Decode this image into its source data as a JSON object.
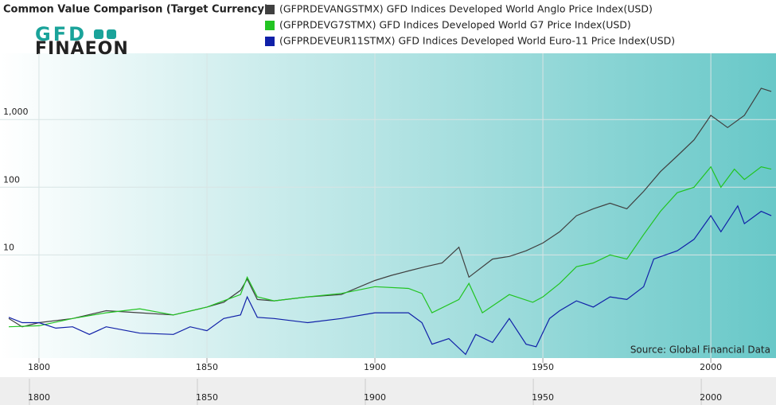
{
  "chart_data": {
    "type": "line",
    "title": "Common Value Comparison (Target Currency)",
    "logo": [
      "GFD",
      "FINAEON"
    ],
    "annotation": "Source: Global Financial Data",
    "log_scale": true,
    "grid": true,
    "xlim": [
      1788.4,
      2019.4
    ],
    "xticks": [
      1800,
      1850,
      1900,
      1950,
      2000
    ],
    "ylim": [
      0.3,
      9500
    ],
    "yticks": [
      10,
      100,
      {
        "value": 1000,
        "label": "1,000"
      }
    ],
    "series": [
      {
        "name": "(GFPRDEVANGSTMX) GFD Indices Developed World Anglo Price Index(USD)",
        "color": "#404040",
        "x": [
          1791,
          1795,
          1800,
          1810,
          1820,
          1830,
          1840,
          1850,
          1855,
          1860,
          1862,
          1865,
          1870,
          1880,
          1890,
          1900,
          1905,
          1910,
          1915,
          1920,
          1925,
          1928,
          1935,
          1940,
          1945,
          1950,
          1955,
          1960,
          1965,
          1970,
          1975,
          1980,
          1985,
          1990,
          1995,
          2000,
          2005,
          2010,
          2015,
          2018
        ],
        "values": [
          1.15,
          0.87,
          1,
          1.15,
          1.5,
          1.4,
          1.3,
          1.7,
          2,
          3,
          4.4,
          2.2,
          2.1,
          2.4,
          2.6,
          4.2,
          5,
          5.8,
          6.7,
          7.6,
          13,
          4.7,
          8.7,
          9.5,
          11.5,
          15,
          22,
          38,
          48,
          58,
          48,
          87,
          170,
          290,
          500,
          1150,
          760,
          1150,
          2900,
          2600
        ]
      },
      {
        "name": "(GFPRDEVG7STMX) GFD Indices Developed World G7 Price Index(USD)",
        "color": "#22c422",
        "x": [
          1791,
          1800,
          1810,
          1820,
          1830,
          1840,
          1850,
          1860,
          1862,
          1865,
          1870,
          1880,
          1890,
          1900,
          1910,
          1914,
          1917,
          1925,
          1928,
          1932,
          1940,
          1947,
          1950,
          1955,
          1960,
          1965,
          1970,
          1975,
          1980,
          1985,
          1990,
          1995,
          2000,
          2003,
          2007,
          2010,
          2015,
          2018
        ],
        "values": [
          0.87,
          0.9,
          1.15,
          1.4,
          1.6,
          1.3,
          1.7,
          2.6,
          4.7,
          2.4,
          2.1,
          2.4,
          2.7,
          3.4,
          3.2,
          2.7,
          1.4,
          2.2,
          3.8,
          1.4,
          2.6,
          2,
          2.4,
          3.8,
          6.7,
          7.6,
          10,
          8.7,
          20,
          44,
          83,
          100,
          200,
          100,
          185,
          130,
          200,
          185
        ]
      },
      {
        "name": "(GFPRDEVEUR11STMX) GFD Indices Developed World Euro-11 Price Index(USD)",
        "color": "#1020a8",
        "x": [
          1791,
          1795,
          1800,
          1805,
          1810,
          1815,
          1820,
          1830,
          1840,
          1845,
          1850,
          1855,
          1860,
          1862,
          1865,
          1870,
          1880,
          1890,
          1900,
          1910,
          1914,
          1917,
          1922,
          1927,
          1930,
          1935,
          1940,
          1945,
          1948,
          1952,
          1955,
          1960,
          1965,
          1970,
          1975,
          1980,
          1983,
          1990,
          1995,
          2000,
          2003,
          2008,
          2010,
          2015,
          2018
        ],
        "values": [
          1.2,
          1.0,
          1.0,
          0.83,
          0.87,
          0.67,
          0.87,
          0.7,
          0.67,
          0.87,
          0.76,
          1.15,
          1.3,
          2.4,
          1.2,
          1.15,
          1.0,
          1.15,
          1.4,
          1.4,
          1.0,
          0.48,
          0.58,
          0.34,
          0.67,
          0.51,
          1.15,
          0.48,
          0.44,
          1.15,
          1.5,
          2.1,
          1.7,
          2.4,
          2.2,
          3.4,
          8.7,
          11.5,
          17,
          38,
          22,
          53,
          29,
          44,
          38
        ]
      }
    ]
  }
}
